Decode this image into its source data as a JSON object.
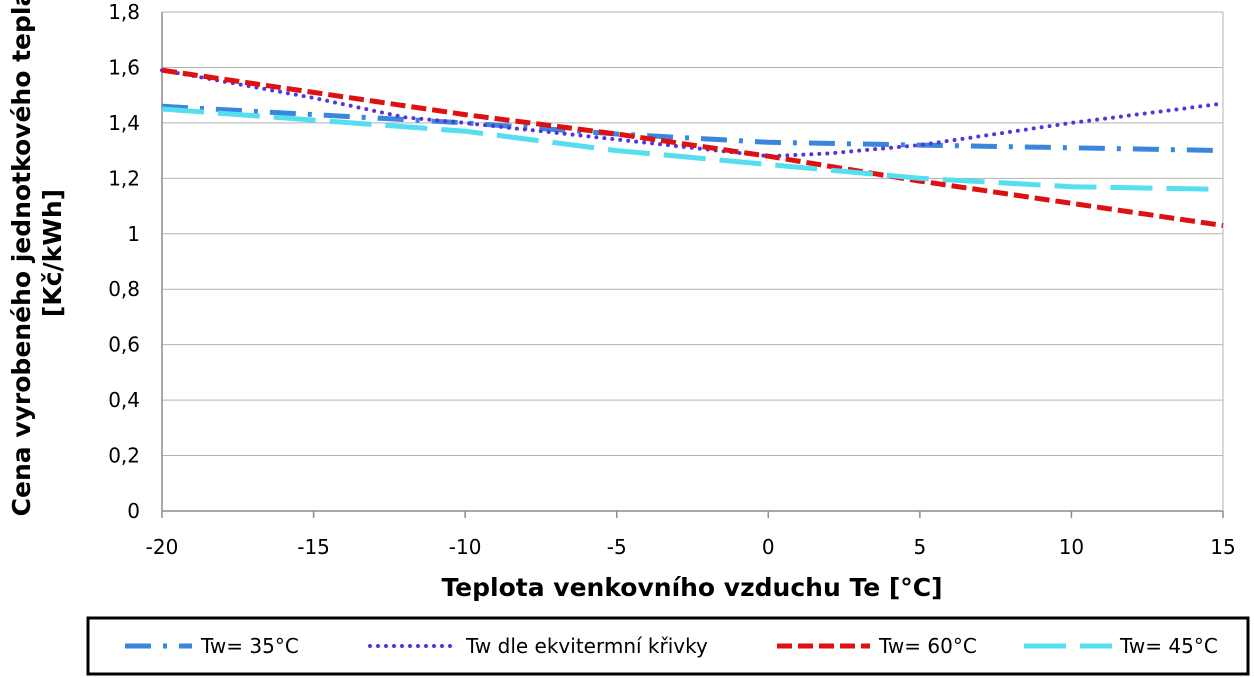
{
  "chart_data": {
    "type": "line",
    "xlabel": "Teplota venkovního vzduchu Te [°C]",
    "ylabel": "Cena vyrobeného jednotkového tepla [Kč/kWh]",
    "xlim": [
      -20,
      15
    ],
    "ylim": [
      0,
      1.8
    ],
    "x_ticks": [
      -20,
      -15,
      -10,
      -5,
      0,
      5,
      10,
      15
    ],
    "x_tick_labels": [
      "-20",
      "-15",
      "-10",
      "-5",
      "0",
      "5",
      "10",
      "15"
    ],
    "y_ticks": [
      0,
      0.2,
      0.4,
      0.6,
      0.8,
      1,
      1.2,
      1.4,
      1.6,
      1.8
    ],
    "y_tick_labels": [
      "0",
      "0,2",
      "0,4",
      "0,6",
      "0,8",
      "1",
      "1,2",
      "1,4",
      "1,6",
      "1,8"
    ],
    "grid": "horizontal",
    "legend_position": "bottom",
    "series": [
      {
        "name": "Tw= 35°C",
        "color": "#3a86dc",
        "style": "dash-dot",
        "x": [
          -20,
          -15,
          -10,
          -5,
          0,
          5,
          10,
          15
        ],
        "y": [
          1.46,
          1.43,
          1.4,
          1.36,
          1.33,
          1.32,
          1.31,
          1.3
        ]
      },
      {
        "name": "Tw dle ekvitermní křivky",
        "color": "#5533dd",
        "style": "dotted",
        "x": [
          -20,
          -15,
          -12,
          -10,
          -5,
          0,
          2,
          5,
          10,
          15
        ],
        "y": [
          1.59,
          1.49,
          1.42,
          1.4,
          1.34,
          1.28,
          1.29,
          1.32,
          1.4,
          1.47
        ]
      },
      {
        "name": "Tw= 60°C",
        "color": "#dd1111",
        "style": "dashed",
        "x": [
          -20,
          -15,
          -10,
          -5,
          0,
          5,
          10,
          15
        ],
        "y": [
          1.59,
          1.51,
          1.43,
          1.36,
          1.28,
          1.19,
          1.11,
          1.03
        ]
      },
      {
        "name": "Tw= 45°C",
        "color": "#55ddf0",
        "style": "long-dash",
        "x": [
          -20,
          -15,
          -10,
          -5,
          0,
          5,
          10,
          15
        ],
        "y": [
          1.45,
          1.41,
          1.37,
          1.3,
          1.25,
          1.2,
          1.17,
          1.16
        ]
      }
    ]
  }
}
